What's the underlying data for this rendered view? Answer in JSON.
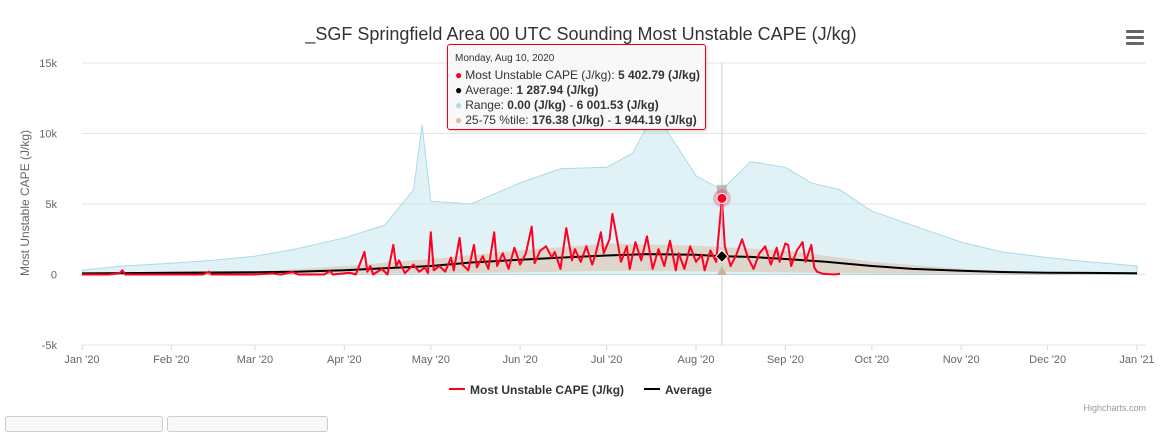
{
  "colors": {
    "mu_cape": "#ff0022",
    "average": "#000000",
    "range": "#a9dbe8",
    "percentile": "#dcc0a8"
  },
  "chart_data": {
    "type": "line",
    "title": "_SGF Springfield Area 00 UTC Sounding Most Unstable CAPE (J/kg)",
    "ylabel": "Most Unstable CAPE (J/kg)",
    "ylim": [
      -5000,
      15000
    ],
    "yticks": [
      {
        "value": -5000,
        "label": "-5k"
      },
      {
        "value": 0,
        "label": "0"
      },
      {
        "value": 5000,
        "label": "5k"
      },
      {
        "value": 10000,
        "label": "10k"
      },
      {
        "value": 15000,
        "label": "15k"
      }
    ],
    "xlim": [
      "2020-01-01",
      "2021-01-01"
    ],
    "xticks": [
      {
        "date": "2020-01-01",
        "label": "Jan '20"
      },
      {
        "date": "2020-02-01",
        "label": "Feb '20"
      },
      {
        "date": "2020-03-01",
        "label": "Mar '20"
      },
      {
        "date": "2020-04-01",
        "label": "Apr '20"
      },
      {
        "date": "2020-05-01",
        "label": "May '20"
      },
      {
        "date": "2020-06-01",
        "label": "Jun '20"
      },
      {
        "date": "2020-07-01",
        "label": "Jul '20"
      },
      {
        "date": "2020-08-01",
        "label": "Aug '20"
      },
      {
        "date": "2020-09-01",
        "label": "Sep '20"
      },
      {
        "date": "2020-10-01",
        "label": "Oct '20"
      },
      {
        "date": "2020-11-01",
        "label": "Nov '20"
      },
      {
        "date": "2020-12-01",
        "label": "Dec '20"
      },
      {
        "date": "2021-01-01",
        "label": "Jan '21"
      }
    ],
    "grid": true,
    "legend_position": "bottom-center",
    "legend": [
      "Most Unstable CAPE (J/kg)",
      "Average"
    ],
    "series": [
      {
        "name": "Most Unstable CAPE (J/kg)",
        "type": "line",
        "points": [
          [
            "2020-01-01",
            0
          ],
          [
            "2020-01-10",
            0
          ],
          [
            "2020-01-14",
            80
          ],
          [
            "2020-01-15",
            300
          ],
          [
            "2020-01-16",
            0
          ],
          [
            "2020-02-01",
            0
          ],
          [
            "2020-02-12",
            0
          ],
          [
            "2020-02-14",
            200
          ],
          [
            "2020-02-15",
            0
          ],
          [
            "2020-03-01",
            0
          ],
          [
            "2020-03-07",
            80
          ],
          [
            "2020-03-10",
            0
          ],
          [
            "2020-03-14",
            180
          ],
          [
            "2020-03-16",
            0
          ],
          [
            "2020-03-25",
            0
          ],
          [
            "2020-03-27",
            250
          ],
          [
            "2020-03-28",
            0
          ],
          [
            "2020-04-03",
            120
          ],
          [
            "2020-04-05",
            0
          ],
          [
            "2020-04-08",
            1600
          ],
          [
            "2020-04-09",
            200
          ],
          [
            "2020-04-10",
            600
          ],
          [
            "2020-04-11",
            0
          ],
          [
            "2020-04-14",
            400
          ],
          [
            "2020-04-16",
            0
          ],
          [
            "2020-04-18",
            2100
          ],
          [
            "2020-04-19",
            600
          ],
          [
            "2020-04-20",
            1000
          ],
          [
            "2020-04-22",
            100
          ],
          [
            "2020-04-25",
            700
          ],
          [
            "2020-04-27",
            200
          ],
          [
            "2020-04-29",
            500
          ],
          [
            "2020-04-30",
            100
          ],
          [
            "2020-05-01",
            3000
          ],
          [
            "2020-05-02",
            300
          ],
          [
            "2020-05-04",
            600
          ],
          [
            "2020-05-06",
            200
          ],
          [
            "2020-05-08",
            1200
          ],
          [
            "2020-05-09",
            300
          ],
          [
            "2020-05-11",
            2600
          ],
          [
            "2020-05-12",
            700
          ],
          [
            "2020-05-14",
            300
          ],
          [
            "2020-05-16",
            2100
          ],
          [
            "2020-05-17",
            500
          ],
          [
            "2020-05-19",
            1300
          ],
          [
            "2020-05-21",
            400
          ],
          [
            "2020-05-23",
            3000
          ],
          [
            "2020-05-24",
            600
          ],
          [
            "2020-05-26",
            1500
          ],
          [
            "2020-05-28",
            400
          ],
          [
            "2020-05-30",
            1900
          ],
          [
            "2020-06-01",
            700
          ],
          [
            "2020-06-03",
            1500
          ],
          [
            "2020-06-05",
            3400
          ],
          [
            "2020-06-06",
            800
          ],
          [
            "2020-06-08",
            1700
          ],
          [
            "2020-06-10",
            2000
          ],
          [
            "2020-06-12",
            1200
          ],
          [
            "2020-06-13",
            1600
          ],
          [
            "2020-06-15",
            400
          ],
          [
            "2020-06-17",
            3300
          ],
          [
            "2020-06-19",
            1000
          ],
          [
            "2020-06-20",
            1800
          ],
          [
            "2020-06-22",
            900
          ],
          [
            "2020-06-24",
            2000
          ],
          [
            "2020-06-26",
            700
          ],
          [
            "2020-06-27",
            1300
          ],
          [
            "2020-06-29",
            3000
          ],
          [
            "2020-06-30",
            1500
          ],
          [
            "2020-07-02",
            2500
          ],
          [
            "2020-07-03",
            4300
          ],
          [
            "2020-07-04",
            3200
          ],
          [
            "2020-07-06",
            900
          ],
          [
            "2020-07-08",
            2000
          ],
          [
            "2020-07-09",
            400
          ],
          [
            "2020-07-11",
            2300
          ],
          [
            "2020-07-13",
            1000
          ],
          [
            "2020-07-15",
            2700
          ],
          [
            "2020-07-17",
            400
          ],
          [
            "2020-07-19",
            1800
          ],
          [
            "2020-07-21",
            600
          ],
          [
            "2020-07-23",
            2400
          ],
          [
            "2020-07-25",
            300
          ],
          [
            "2020-07-26",
            1500
          ],
          [
            "2020-07-28",
            400
          ],
          [
            "2020-07-30",
            2000
          ],
          [
            "2020-08-01",
            900
          ],
          [
            "2020-08-03",
            1400
          ],
          [
            "2020-08-04",
            300
          ],
          [
            "2020-08-06",
            1700
          ],
          [
            "2020-08-08",
            900
          ],
          [
            "2020-08-10",
            5402.79
          ],
          [
            "2020-08-11",
            2000
          ],
          [
            "2020-08-13",
            600
          ],
          [
            "2020-08-15",
            1400
          ],
          [
            "2020-08-17",
            2500
          ],
          [
            "2020-08-19",
            1200
          ],
          [
            "2020-08-21",
            400
          ],
          [
            "2020-08-23",
            1500
          ],
          [
            "2020-08-25",
            2000
          ],
          [
            "2020-08-27",
            700
          ],
          [
            "2020-08-29",
            1900
          ],
          [
            "2020-08-30",
            900
          ],
          [
            "2020-09-01",
            2200
          ],
          [
            "2020-09-02",
            2100
          ],
          [
            "2020-09-03",
            600
          ],
          [
            "2020-09-05",
            1700
          ],
          [
            "2020-09-07",
            2300
          ],
          [
            "2020-09-08",
            900
          ],
          [
            "2020-09-10",
            2100
          ],
          [
            "2020-09-11",
            500
          ],
          [
            "2020-09-12",
            200
          ],
          [
            "2020-09-14",
            50
          ],
          [
            "2020-09-18",
            0
          ],
          [
            "2020-09-20",
            50
          ]
        ]
      },
      {
        "name": "Average",
        "type": "line",
        "points": [
          [
            "2020-01-01",
            80
          ],
          [
            "2020-01-15",
            100
          ],
          [
            "2020-02-01",
            120
          ],
          [
            "2020-02-15",
            140
          ],
          [
            "2020-03-01",
            160
          ],
          [
            "2020-03-15",
            200
          ],
          [
            "2020-04-01",
            300
          ],
          [
            "2020-04-15",
            450
          ],
          [
            "2020-05-01",
            600
          ],
          [
            "2020-05-15",
            850
          ],
          [
            "2020-06-01",
            1050
          ],
          [
            "2020-06-15",
            1200
          ],
          [
            "2020-07-01",
            1350
          ],
          [
            "2020-07-15",
            1450
          ],
          [
            "2020-08-01",
            1400
          ],
          [
            "2020-08-10",
            1287.94
          ],
          [
            "2020-08-20",
            1250
          ],
          [
            "2020-09-01",
            1100
          ],
          [
            "2020-09-15",
            900
          ],
          [
            "2020-10-01",
            600
          ],
          [
            "2020-10-15",
            400
          ],
          [
            "2020-11-01",
            260
          ],
          [
            "2020-11-15",
            180
          ],
          [
            "2020-12-01",
            130
          ],
          [
            "2020-12-15",
            110
          ],
          [
            "2021-01-01",
            90
          ]
        ]
      },
      {
        "name": "Range",
        "type": "arearange",
        "points": [
          [
            "2020-01-01",
            0,
            300
          ],
          [
            "2020-01-15",
            0,
            600
          ],
          [
            "2020-02-01",
            0,
            800
          ],
          [
            "2020-02-15",
            0,
            1000
          ],
          [
            "2020-03-01",
            0,
            1300
          ],
          [
            "2020-03-15",
            0,
            1800
          ],
          [
            "2020-04-01",
            0,
            2600
          ],
          [
            "2020-04-15",
            0,
            3500
          ],
          [
            "2020-04-25",
            0,
            6000
          ],
          [
            "2020-04-28",
            0,
            10600
          ],
          [
            "2020-05-01",
            0,
            5200
          ],
          [
            "2020-05-15",
            0,
            5000
          ],
          [
            "2020-06-01",
            0,
            6500
          ],
          [
            "2020-06-15",
            0,
            7500
          ],
          [
            "2020-07-01",
            0,
            7600
          ],
          [
            "2020-07-10",
            0,
            8600
          ],
          [
            "2020-07-15",
            0,
            10500
          ],
          [
            "2020-07-20",
            0,
            10800
          ],
          [
            "2020-08-01",
            0,
            7000
          ],
          [
            "2020-08-10",
            0,
            6001.53
          ],
          [
            "2020-08-20",
            0,
            8000
          ],
          [
            "2020-09-01",
            0,
            7600
          ],
          [
            "2020-09-10",
            0,
            6500
          ],
          [
            "2020-09-20",
            0,
            6000
          ],
          [
            "2020-10-01",
            0,
            4500
          ],
          [
            "2020-10-15",
            0,
            3500
          ],
          [
            "2020-11-01",
            0,
            2300
          ],
          [
            "2020-11-15",
            0,
            1600
          ],
          [
            "2020-12-01",
            0,
            1200
          ],
          [
            "2020-12-15",
            0,
            900
          ],
          [
            "2021-01-01",
            0,
            600
          ]
        ]
      },
      {
        "name": "25-75 %tile",
        "type": "arearange",
        "points": [
          [
            "2020-01-01",
            0,
            50
          ],
          [
            "2020-02-01",
            0,
            100
          ],
          [
            "2020-03-01",
            0,
            200
          ],
          [
            "2020-04-01",
            30,
            600
          ],
          [
            "2020-05-01",
            80,
            1100
          ],
          [
            "2020-06-01",
            150,
            1700
          ],
          [
            "2020-07-01",
            250,
            2200
          ],
          [
            "2020-08-01",
            220,
            2050
          ],
          [
            "2020-08-10",
            176.38,
            1944.19
          ],
          [
            "2020-09-01",
            150,
            1700
          ],
          [
            "2020-10-01",
            60,
            900
          ],
          [
            "2020-11-01",
            20,
            400
          ],
          [
            "2020-12-01",
            0,
            150
          ],
          [
            "2021-01-01",
            0,
            80
          ]
        ]
      }
    ],
    "tooltip": {
      "date": "Monday, Aug 10, 2020",
      "rows": [
        {
          "label": "Most Unstable CAPE (J/kg): ",
          "value": "5 402.79 (J/kg)"
        },
        {
          "label": "Average: ",
          "value": "1 287.94 (J/kg)"
        },
        {
          "label": "Range: ",
          "value": "0.00 (J/kg)",
          "sep": " - ",
          "value2": "6 001.53 (J/kg)"
        },
        {
          "label": "25-75 %tile: ",
          "value": "176.38 (J/kg)",
          "sep": " - ",
          "value2": "1 944.19 (J/kg)"
        }
      ]
    },
    "highlight_date": "2020-08-10",
    "credit": "Highcharts.com"
  }
}
